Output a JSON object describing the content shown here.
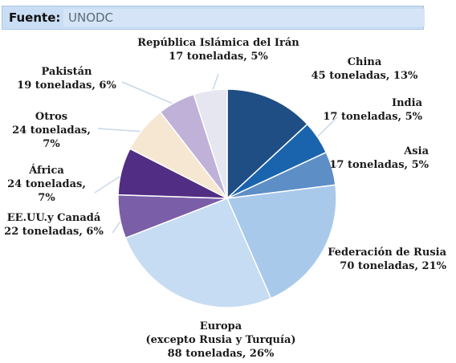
{
  "source": {
    "label": "Fuente:",
    "value": "UNODC"
  },
  "chart_data": {
    "type": "pie",
    "slices": [
      {
        "name": "China",
        "detail": "45 toneladas, 13%",
        "tons": 45,
        "percent": 13,
        "color": "#1f4e85"
      },
      {
        "name": "India",
        "detail": "17 toneladas, 5%",
        "tons": 17,
        "percent": 5,
        "color": "#1a64ad"
      },
      {
        "name": "Asia",
        "detail": "17 toneladas, 5%",
        "tons": 17,
        "percent": 5,
        "color": "#5d8ec6"
      },
      {
        "name": "Federación de Rusia",
        "detail": "70 toneladas, 21%",
        "tons": 70,
        "percent": 21,
        "color": "#a8c9ea"
      },
      {
        "name": "Europa",
        "name2": "(excepto Rusia y Turquía)",
        "detail": "88 toneladas, 26%",
        "tons": 88,
        "percent": 26,
        "color": "#c6dcf2"
      },
      {
        "name": "EE.UU.y Canadá",
        "detail": "22 toneladas, 6%",
        "tons": 22,
        "percent": 6,
        "color": "#7a5ea8"
      },
      {
        "name": "África",
        "detail": "24 toneladas,",
        "detail2": "7%",
        "tons": 24,
        "percent": 7,
        "color": "#512d83"
      },
      {
        "name": "Otros",
        "detail": "24 toneladas,",
        "detail2": "7%",
        "tons": 24,
        "percent": 7,
        "color": "#f6e7d2"
      },
      {
        "name": "Pakistán",
        "detail": "19 toneladas, 6%",
        "tons": 19,
        "percent": 6,
        "color": "#bfb1d7"
      },
      {
        "name": "República Islámica del Irán",
        "detail": "17 toneladas, 5%",
        "tons": 17,
        "percent": 5,
        "color": "#e6e6f1"
      }
    ]
  }
}
